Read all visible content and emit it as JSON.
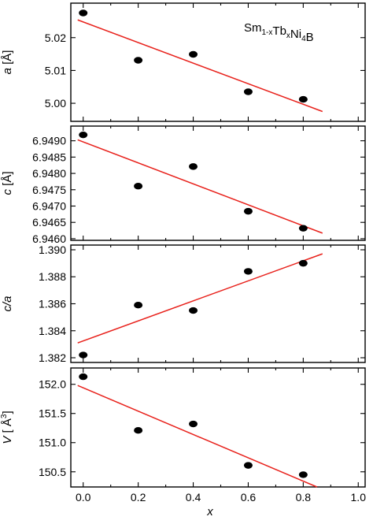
{
  "chart_data": [
    {
      "type": "scatter",
      "ylabel_var": "a",
      "ylabel_unit": " [Å]",
      "ylim": [
        4.9945,
        5.0305
      ],
      "yticks": [
        "5.00",
        "5.01",
        "5.02"
      ],
      "ytick_values": [
        5.0,
        5.01,
        5.02
      ],
      "annotation": {
        "parts": [
          {
            "text": "Sm",
            "sub": false
          },
          {
            "text": "1-x",
            "sub": true
          },
          {
            "text": "Tb",
            "sub": false
          },
          {
            "text": "x",
            "sub": true
          },
          {
            "text": "Ni",
            "sub": false
          },
          {
            "text": "4",
            "sub": true
          },
          {
            "text": "B",
            "sub": false
          }
        ]
      },
      "points": [
        {
          "x": 0.0,
          "y": 5.0275
        },
        {
          "x": 0.2,
          "y": 5.0131
        },
        {
          "x": 0.4,
          "y": 5.0149
        },
        {
          "x": 0.6,
          "y": 5.0035
        },
        {
          "x": 0.8,
          "y": 5.0012
        }
      ],
      "fit": [
        {
          "x": -0.02,
          "y": 5.0254
        },
        {
          "x": 0.87,
          "y": 4.9975
        }
      ]
    },
    {
      "type": "scatter",
      "ylabel_var": "c",
      "ylabel_unit": " [Å]",
      "ylim": [
        6.94595,
        6.94945
      ],
      "yticks": [
        "6.9460",
        "6.9465",
        "6.9470",
        "6.9475",
        "6.9480",
        "6.9485",
        "6.9490"
      ],
      "ytick_values": [
        6.946,
        6.9465,
        6.947,
        6.9475,
        6.948,
        6.9485,
        6.949
      ],
      "points": [
        {
          "x": 0.0,
          "y": 6.94918
        },
        {
          "x": 0.2,
          "y": 6.94761
        },
        {
          "x": 0.4,
          "y": 6.94821
        },
        {
          "x": 0.6,
          "y": 6.94684
        },
        {
          "x": 0.8,
          "y": 6.94632
        }
      ],
      "fit": [
        {
          "x": -0.02,
          "y": 6.94903
        },
        {
          "x": 0.87,
          "y": 6.94617
        }
      ]
    },
    {
      "type": "scatter",
      "ylabel_var": "c/a",
      "ylabel_unit": "",
      "ylim": [
        1.38165,
        1.39035
      ],
      "yticks": [
        "1.382",
        "1.384",
        "1.386",
        "1.388",
        "1.390"
      ],
      "ytick_values": [
        1.382,
        1.384,
        1.386,
        1.388,
        1.39
      ],
      "points": [
        {
          "x": 0.0,
          "y": 1.3822
        },
        {
          "x": 0.2,
          "y": 1.3859
        },
        {
          "x": 0.4,
          "y": 1.3855
        },
        {
          "x": 0.6,
          "y": 1.3884
        },
        {
          "x": 0.8,
          "y": 1.389
        }
      ],
      "fit": [
        {
          "x": -0.02,
          "y": 1.3831
        },
        {
          "x": 0.87,
          "y": 1.3897
        }
      ]
    },
    {
      "type": "scatter",
      "ylabel_var": "V",
      "ylabel_unit": " [ Å",
      "ylabel_sup": "3",
      "ylabel_close": "]",
      "ylim": [
        150.24,
        152.28
      ],
      "yticks": [
        "150.5",
        "151.0",
        "151.5",
        "152.0"
      ],
      "ytick_values": [
        150.5,
        151.0,
        151.5,
        152.0
      ],
      "points": [
        {
          "x": 0.0,
          "y": 152.13
        },
        {
          "x": 0.2,
          "y": 151.21
        },
        {
          "x": 0.4,
          "y": 151.32
        },
        {
          "x": 0.6,
          "y": 150.61
        },
        {
          "x": 0.8,
          "y": 150.45
        }
      ],
      "fit": [
        {
          "x": -0.02,
          "y": 151.98
        },
        {
          "x": 0.85,
          "y": 150.24
        }
      ]
    }
  ],
  "x_axis": {
    "label": "x",
    "xlim": [
      -0.045,
      1.025
    ],
    "ticks": [
      "0.0",
      "0.2",
      "0.4",
      "0.6",
      "0.8",
      "1.0"
    ],
    "tick_values": [
      0.0,
      0.2,
      0.4,
      0.6,
      0.8,
      1.0
    ]
  },
  "style": {
    "fit_color": "#e8211b",
    "point_color": "#000000",
    "axis_color": "#000000"
  }
}
